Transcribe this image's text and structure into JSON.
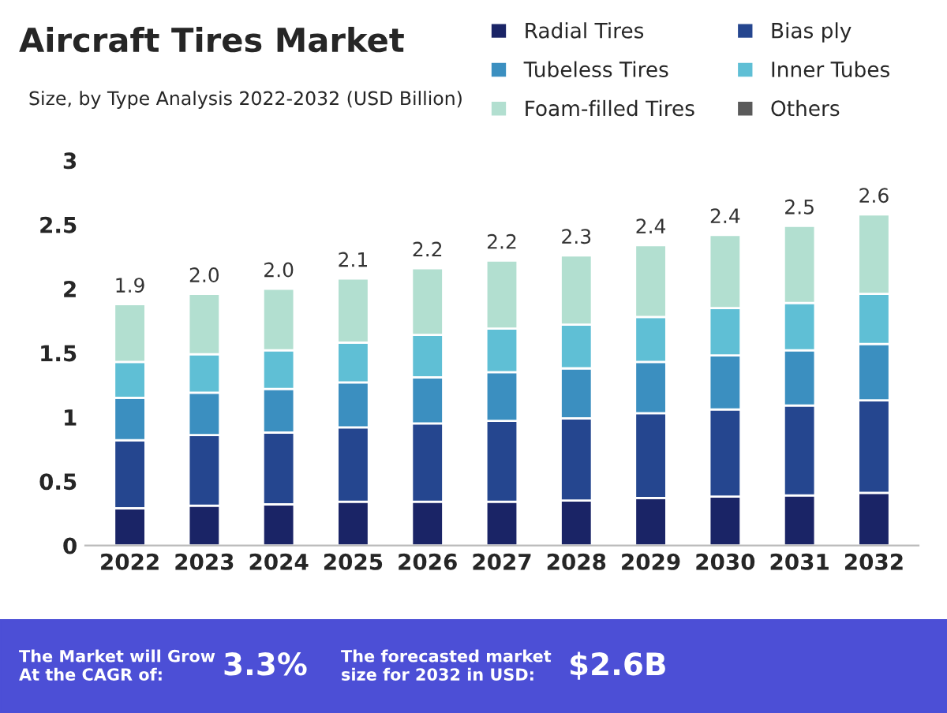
{
  "chart_data": {
    "type": "bar",
    "stacked": true,
    "title": "Aircraft Tires Market",
    "subtitle": "Size, by Type Analysis 2022-2032 (USD Billion)",
    "categories": [
      "2022",
      "2023",
      "2024",
      "2025",
      "2026",
      "2027",
      "2028",
      "2029",
      "2030",
      "2031",
      "2032"
    ],
    "series": [
      {
        "name": "Radial Tires",
        "color": "#1a2466",
        "values": [
          0.29,
          0.31,
          0.32,
          0.34,
          0.34,
          0.34,
          0.35,
          0.37,
          0.38,
          0.39,
          0.41
        ]
      },
      {
        "name": "Bias ply",
        "color": "#25468f",
        "values": [
          0.53,
          0.55,
          0.56,
          0.58,
          0.61,
          0.63,
          0.64,
          0.66,
          0.68,
          0.7,
          0.72
        ]
      },
      {
        "name": "Tubeless Tires",
        "color": "#3b8fc0",
        "values": [
          0.33,
          0.33,
          0.34,
          0.35,
          0.36,
          0.38,
          0.39,
          0.4,
          0.42,
          0.43,
          0.44
        ]
      },
      {
        "name": "Inner Tubes",
        "color": "#5fbfd5",
        "values": [
          0.28,
          0.3,
          0.3,
          0.31,
          0.33,
          0.34,
          0.34,
          0.35,
          0.37,
          0.37,
          0.39
        ]
      },
      {
        "name": "Foam-filled Tires",
        "color": "#b2dfd0",
        "values": [
          0.45,
          0.47,
          0.48,
          0.5,
          0.52,
          0.53,
          0.54,
          0.56,
          0.57,
          0.6,
          0.62
        ]
      },
      {
        "name": "Others",
        "color": "#5a5a5a",
        "values": [
          null,
          null,
          null,
          null,
          null,
          null,
          null,
          null,
          null,
          null,
          null
        ]
      }
    ],
    "totals": [
      "1.9",
      "2.0",
      "2.0",
      "2.1",
      "2.2",
      "2.2",
      "2.3",
      "2.4",
      "2.4",
      "2.5",
      "2.6"
    ],
    "ylim": [
      0,
      3
    ],
    "yticks": [
      0,
      0.5,
      1,
      1.5,
      2,
      2.5,
      3
    ],
    "grid": false,
    "legend": "top right",
    "annotations": [
      "The Market will Grow\nAt the CAGR of:",
      "3.3%",
      "The forecasted market\nsize for 2032 in USD:",
      "$2.6B"
    ]
  }
}
